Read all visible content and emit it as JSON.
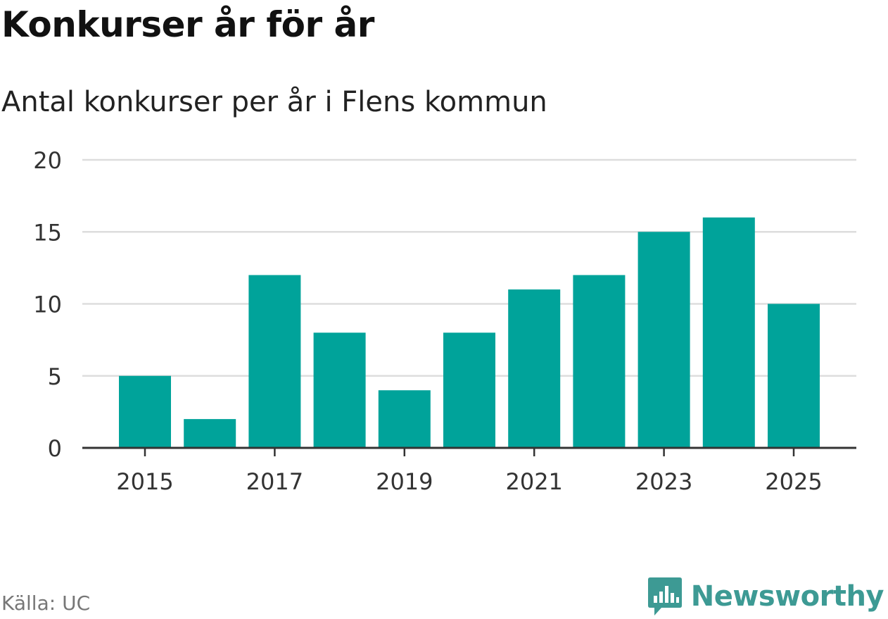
{
  "header": {
    "title": "Konkurser år för år",
    "subtitle": "Antal konkurser per år i Flens kommun"
  },
  "footer": {
    "source": "Källa: UC",
    "brand": "Newsworthy"
  },
  "colors": {
    "bar": "#00a39a",
    "grid": "#dddddd",
    "axis": "#333333",
    "brand": "#3d9a94"
  },
  "icons": {
    "brand_logo": "newsworthy-logo-icon"
  },
  "chart_data": {
    "type": "bar",
    "categories": [
      "2015",
      "2016",
      "2017",
      "2018",
      "2019",
      "2020",
      "2021",
      "2022",
      "2023",
      "2024",
      "2025"
    ],
    "values": [
      5,
      2,
      12,
      8,
      4,
      8,
      11,
      12,
      15,
      16,
      10
    ],
    "x_tick_labels": [
      "2015",
      "2017",
      "2019",
      "2021",
      "2023",
      "2025"
    ],
    "y_ticks": [
      0,
      5,
      10,
      15,
      20
    ],
    "ylim": [
      0,
      20
    ],
    "grid": true,
    "legend": "none"
  }
}
